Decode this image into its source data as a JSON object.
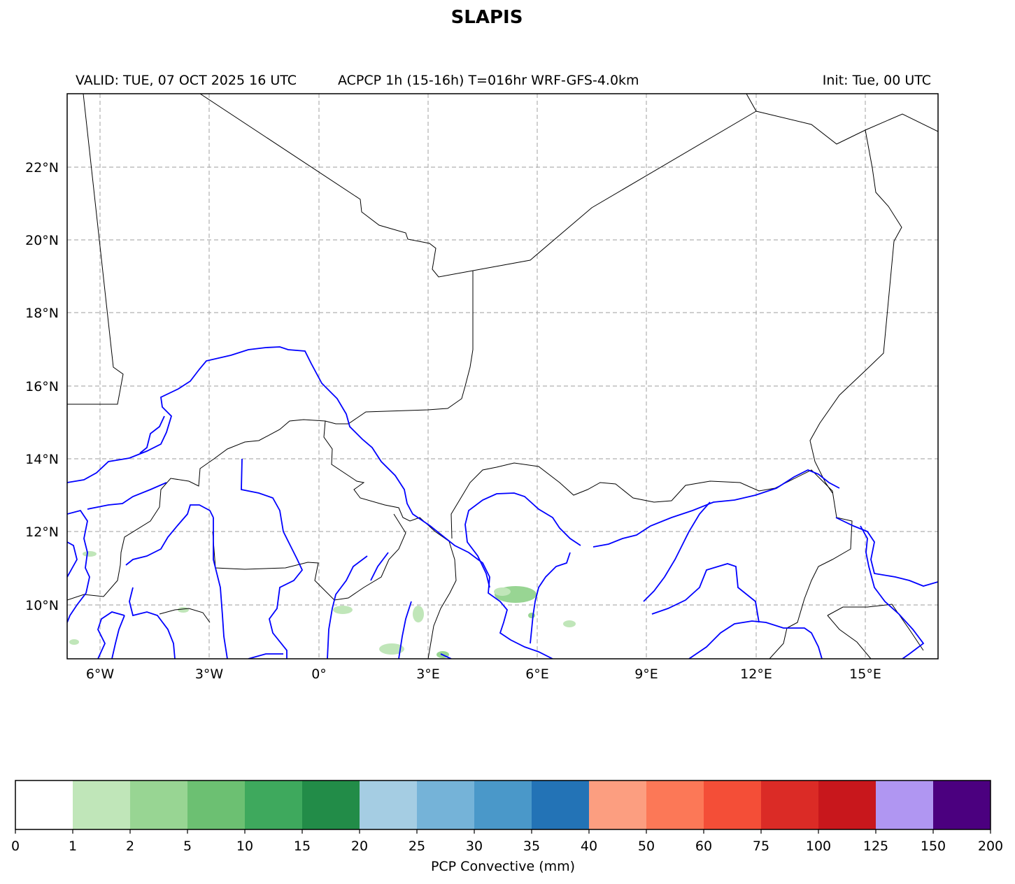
{
  "title": "SLAPIS",
  "subtitle": {
    "valid": "VALID: TUE, 07 OCT 2025 16 UTC",
    "product": "ACPCP 1h (15-16h) T=016hr WRF-GFS-4.0km",
    "init": "Init: Tue, 00 UTC"
  },
  "map": {
    "lon_ticks": [
      "6°W",
      "3°W",
      "0°",
      "3°E",
      "6°E",
      "9°E",
      "12°E",
      "15°E"
    ],
    "lat_ticks": [
      "22°N",
      "20°N",
      "18°N",
      "16°N",
      "14°N",
      "12°N",
      "10°N"
    ],
    "lon_range": [
      -6.9,
      17.0
    ],
    "lat_range": [
      8.5,
      24.0
    ],
    "gridlines": true,
    "boundary_color": "#000000",
    "river_color": "#0000ff"
  },
  "colorbar": {
    "label": "PCP Convective (mm)",
    "levels": [
      "0",
      "1",
      "2",
      "5",
      "10",
      "15",
      "20",
      "25",
      "30",
      "35",
      "40",
      "50",
      "60",
      "75",
      "100",
      "125",
      "150",
      "200"
    ],
    "colors": [
      "#ffffff",
      "#c0e6b9",
      "#98d593",
      "#6cc072",
      "#3ea95d",
      "#228c48",
      "#a5cde3",
      "#75b3d8",
      "#4a98c9",
      "#2373b6",
      "#fc9e80",
      "#fc7857",
      "#f44e37",
      "#db2b26",
      "#c8171c",
      "#b096f2",
      "#4b007f"
    ]
  },
  "chart_data": {
    "type": "heatmap",
    "title": "SLAPIS",
    "variable": "PCP Convective (mm)",
    "xlim": [
      -6.9,
      17.0
    ],
    "ylim": [
      8.5,
      24.0
    ],
    "precip_areas_mm": [
      {
        "lon": 5.3,
        "lat": 10.3,
        "value": 2
      },
      {
        "lon": 2.8,
        "lat": 9.3,
        "value": 1
      },
      {
        "lon": 2.2,
        "lat": 8.7,
        "value": 1
      },
      {
        "lon": 0.7,
        "lat": 9.6,
        "value": 1
      },
      {
        "lon": 6.9,
        "lat": 9.4,
        "value": 1
      },
      {
        "lon": 3.4,
        "lat": 8.6,
        "value": 2
      }
    ]
  }
}
